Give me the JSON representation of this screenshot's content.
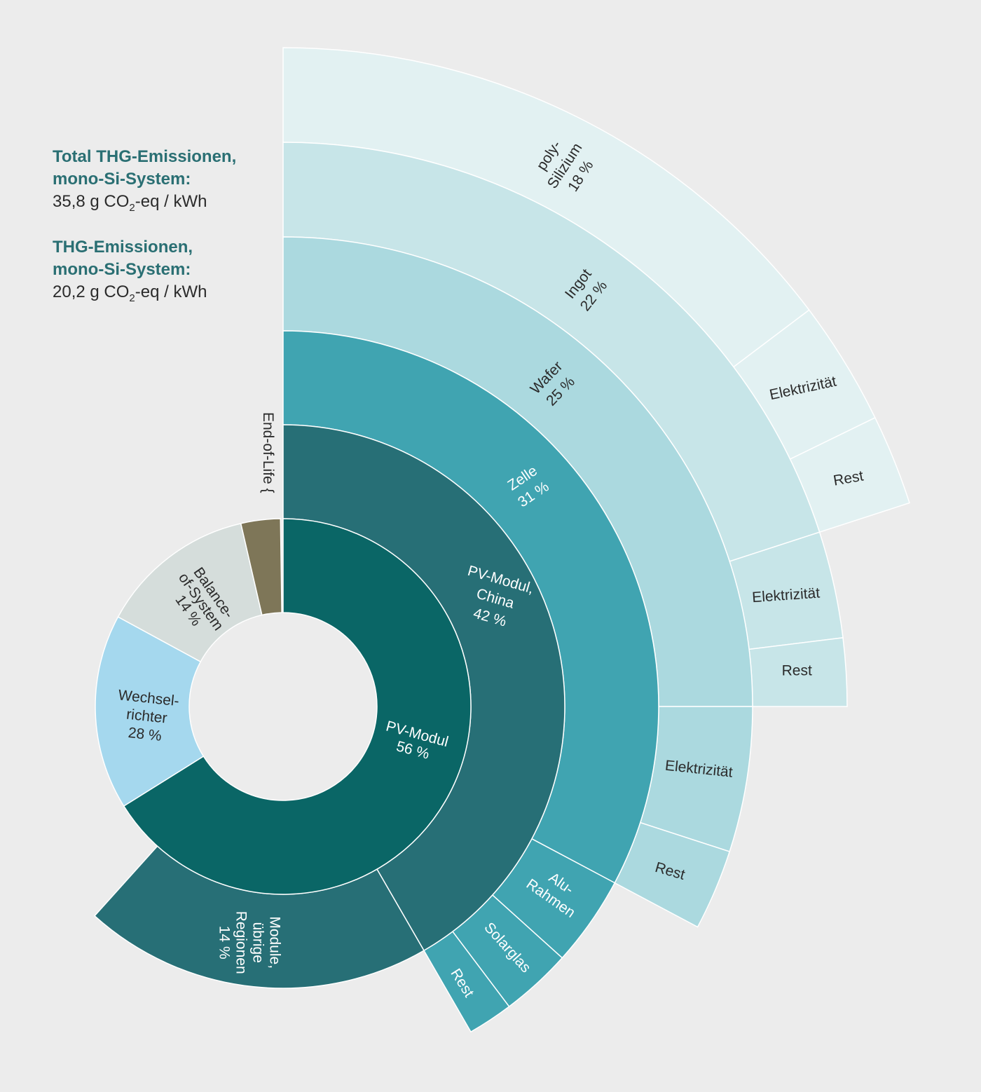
{
  "summary": [
    {
      "title_line1": "Total THG-Emissionen,",
      "title_line2": "mono-Si-System:",
      "value_number": "35,8",
      "value_prefix": "g CO",
      "value_sub": "2",
      "value_suffix": "-eq / kWh"
    },
    {
      "title_line1": "THG-Emissionen,",
      "title_line2": "mono-Si-System:",
      "value_number": "20,2",
      "value_prefix": "g CO",
      "value_sub": "2",
      "value_suffix": "-eq / kWh"
    }
  ],
  "chart_data": {
    "type": "sunburst",
    "colors": {
      "background": "#ececec",
      "pv_modul": "#0a6666",
      "pv_modul_china": "#276f76",
      "zelle": "#40a4b1",
      "wafer": "#abd9df",
      "ingot": "#c7e5e8",
      "poly_silizium": "#e2f1f2",
      "wechselrichter": "#a5d8ee",
      "balance_of_system": "#d5dddb",
      "end_of_life": "#7e7658"
    },
    "segments": [
      {
        "id": "pv-modul",
        "label": [
          "PV-Modul",
          "56 %"
        ],
        "value": 56,
        "color": "#0a6666",
        "text_color": "#ffffff"
      },
      {
        "id": "wechselrichter",
        "label": [
          "Wechsel-",
          "richter",
          "28 %"
        ],
        "value": 28,
        "color": "#a5d8ee",
        "text_color": "#2b2b2b"
      },
      {
        "id": "balance-of-system",
        "label": [
          "Balance-",
          "of-System",
          "14 %"
        ],
        "value": 14,
        "color": "#d5dddb",
        "text_color": "#2b2b2b"
      },
      {
        "id": "end-of-life",
        "label": [
          "End-of-Life {"
        ],
        "value": 2,
        "color": "#7e7658",
        "text_color": "#2b2b2b"
      },
      {
        "id": "pv-modul-china",
        "label": [
          "PV-Modul,",
          "China",
          "42 %"
        ],
        "value": 42,
        "color": "#276f76",
        "text_color": "#ffffff"
      },
      {
        "id": "module-uebrige-regionen",
        "label": [
          "Module,",
          "übrige",
          "Regionen",
          "14 %"
        ],
        "value": 14,
        "color": "#276f76",
        "text_color": "#ffffff"
      },
      {
        "id": "zelle",
        "label": [
          "Zelle",
          "31 %"
        ],
        "value": 31,
        "color": "#40a4b1",
        "text_color": "#ffffff"
      },
      {
        "id": "alu-rahmen",
        "label": [
          "Alu-",
          "Rahmen"
        ],
        "color": "#40a4b1",
        "text_color": "#ffffff"
      },
      {
        "id": "solarglas",
        "label": [
          "Solarglas"
        ],
        "color": "#40a4b1",
        "text_color": "#ffffff"
      },
      {
        "id": "rest-modul",
        "label": [
          "Rest"
        ],
        "color": "#40a4b1",
        "text_color": "#ffffff"
      },
      {
        "id": "wafer",
        "label": [
          "Wafer",
          "25 %"
        ],
        "value": 25,
        "color": "#abd9df",
        "text_color": "#2b2b2b"
      },
      {
        "id": "elektrizitaet-zelle",
        "label": [
          "Elektrizität"
        ],
        "color": "#abd9df",
        "text_color": "#2b2b2b"
      },
      {
        "id": "rest-zelle",
        "label": [
          "Rest"
        ],
        "color": "#abd9df",
        "text_color": "#2b2b2b"
      },
      {
        "id": "ingot",
        "label": [
          "Ingot",
          "22 %"
        ],
        "value": 22,
        "color": "#c7e5e8",
        "text_color": "#2b2b2b"
      },
      {
        "id": "elektrizitaet-wafer",
        "label": [
          "Elektrizität"
        ],
        "color": "#c7e5e8",
        "text_color": "#2b2b2b"
      },
      {
        "id": "rest-wafer",
        "label": [
          "Rest"
        ],
        "color": "#c7e5e8",
        "text_color": "#2b2b2b"
      },
      {
        "id": "poly-silizium",
        "label": [
          "poly-",
          "Silizium",
          "18 %"
        ],
        "value": 18,
        "color": "#e2f1f2",
        "text_color": "#2b2b2b"
      },
      {
        "id": "elektrizitaet-ingot",
        "label": [
          "Elektrizität"
        ],
        "color": "#e2f1f2",
        "text_color": "#2b2b2b"
      },
      {
        "id": "rest-ingot",
        "label": [
          "Rest"
        ],
        "color": "#e2f1f2",
        "text_color": "#2b2b2b"
      }
    ]
  }
}
